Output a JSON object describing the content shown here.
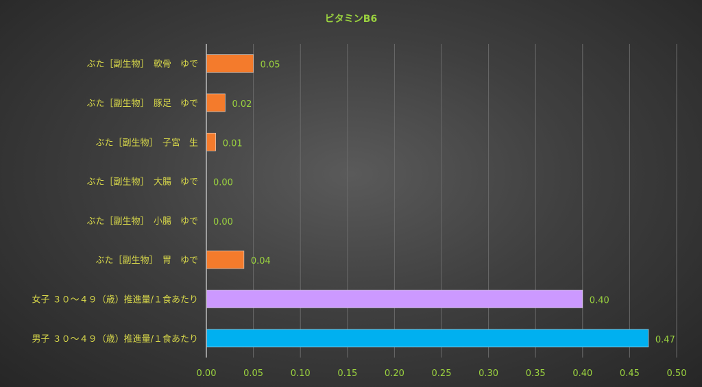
{
  "chart_data": {
    "type": "bar",
    "orientation": "horizontal",
    "title": "ビタミンB6",
    "xlabel": "",
    "ylabel": "",
    "xlim": [
      0,
      0.5
    ],
    "xticks": [
      "0.00",
      "0.05",
      "0.10",
      "0.15",
      "0.20",
      "0.25",
      "0.30",
      "0.35",
      "0.40",
      "0.45",
      "0.50"
    ],
    "grid": true,
    "categories": [
      "ぶた［副生物］　軟骨　ゆで",
      "ぶた［副生物］　豚足　ゆで",
      "ぶた［副生物］　子宮　生",
      "ぶた［副生物］　大腸　ゆで",
      "ぶた［副生物］　小腸　ゆで",
      "ぶた［副生物］　胃　ゆで",
      "女子 ３０～４９（歳）推進量/１食あたり",
      "男子 ３０～４９（歳）推進量/１食あたり"
    ],
    "values": [
      0.05,
      0.02,
      0.01,
      0.0,
      0.0,
      0.04,
      0.4,
      0.47
    ],
    "value_labels": [
      "0.05",
      "0.02",
      "0.01",
      "0.00",
      "0.00",
      "0.04",
      "0.40",
      "0.47"
    ],
    "colors": [
      "#f47b2c",
      "#f47b2c",
      "#f47b2c",
      "#f47b2c",
      "#f47b2c",
      "#f47b2c",
      "#cc99ff",
      "#00b0f0"
    ]
  }
}
